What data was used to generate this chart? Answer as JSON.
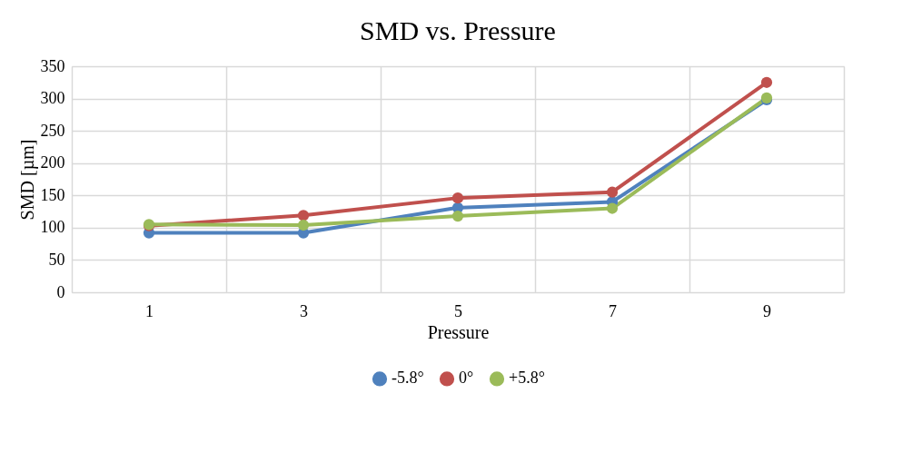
{
  "chart_data": {
    "type": "line",
    "title": "SMD vs. Pressure",
    "xlabel": "Pressure",
    "ylabel": "SMD [µm]",
    "categories": [
      "1",
      "3",
      "5",
      "7",
      "9"
    ],
    "series": [
      {
        "name": "-5.8°",
        "color": "#4f81bd",
        "values": [
          92,
          92,
          131,
          140,
          298
        ]
      },
      {
        "name": "0°",
        "color": "#c0504d",
        "values": [
          103,
          119,
          146,
          155,
          325
        ]
      },
      {
        "name": "+5.8°",
        "color": "#9bbb59",
        "values": [
          105,
          104,
          118,
          130,
          301
        ]
      }
    ],
    "ylim": [
      0,
      350
    ],
    "yticks": [
      0,
      50,
      100,
      150,
      200,
      250,
      300,
      350
    ],
    "grid": true,
    "legend": "bottom",
    "marker": "circle",
    "line_style": "solid"
  }
}
